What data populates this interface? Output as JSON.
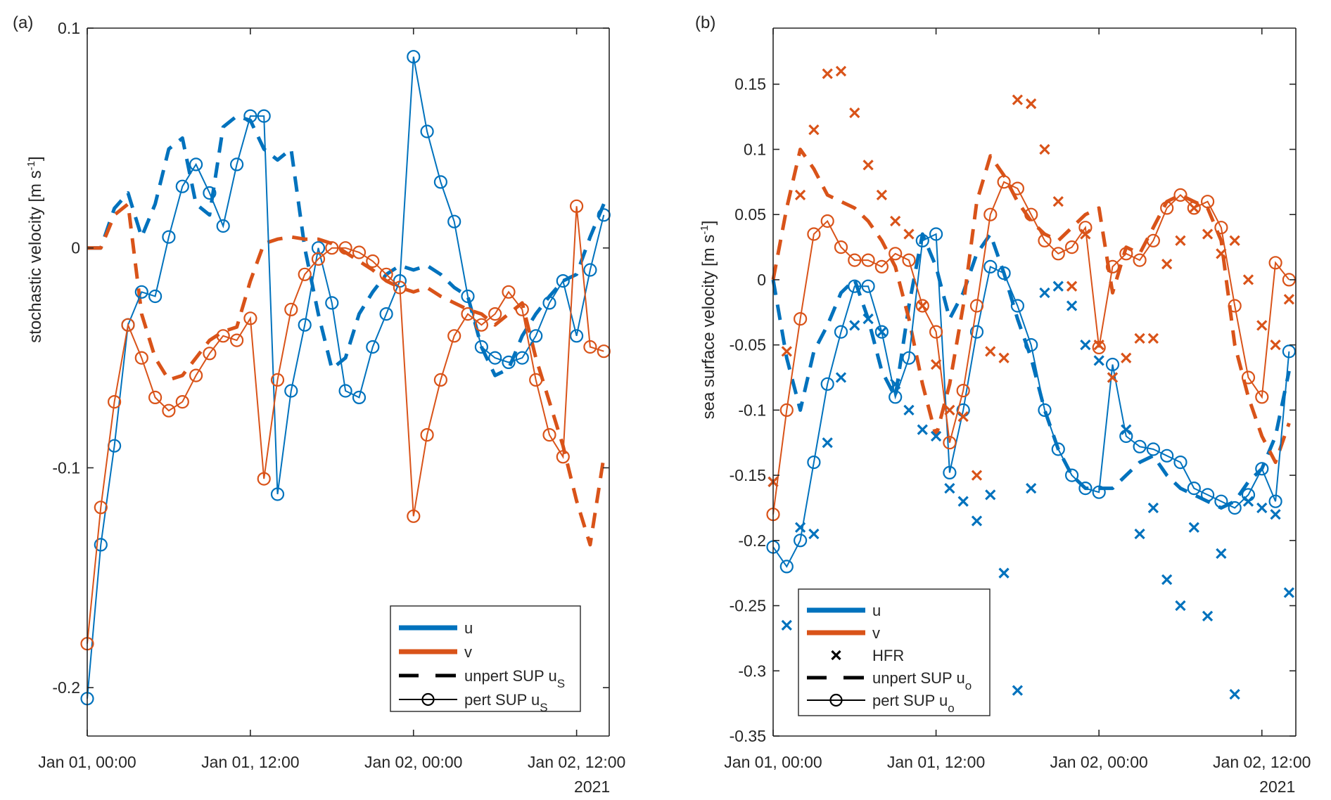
{
  "colors": {
    "u": "#0072BD",
    "v": "#D95319",
    "axis": "#262626"
  },
  "chart_data": [
    {
      "panel_label": "(a)",
      "type": "line",
      "ylabel": "stochastic velocity [m s",
      "ylabel_sup": "-1",
      "ylabel_end": "]",
      "ylim": [
        -0.222,
        0.1
      ],
      "xlim_hours": [
        0,
        38.4
      ],
      "yticks": [
        0.1,
        0,
        -0.1,
        -0.2
      ],
      "ytick_labels": [
        "0.1",
        "0",
        "-0.1",
        "-0.2"
      ],
      "xticks_hours": [
        0,
        12,
        24,
        36
      ],
      "xtick_labels": [
        "Jan 01, 00:00",
        "Jan 01, 12:00",
        "Jan 02, 00:00",
        "Jan 02, 12:00"
      ],
      "xaxis_secondary_label": "2021",
      "legend": {
        "placement": "bottom-right",
        "entries": [
          {
            "label": "u",
            "sub": "",
            "style": "u-line"
          },
          {
            "label": "v",
            "sub": "",
            "style": "v-line"
          },
          {
            "label": "unpert SUP u",
            "sub": "S",
            "style": "dashed"
          },
          {
            "label": "pert SUP u",
            "sub": "S",
            "style": "circle-line"
          }
        ]
      },
      "x_hours": [
        0,
        1,
        2,
        3,
        4,
        5,
        6,
        7,
        8,
        9,
        10,
        11,
        12,
        13,
        14,
        15,
        16,
        17,
        18,
        19,
        20,
        21,
        22,
        23,
        24,
        25,
        26,
        27,
        28,
        29,
        30,
        31,
        32,
        33,
        34,
        35,
        36,
        37,
        38
      ],
      "series": [
        {
          "name": "u unpert SUP",
          "color_key": "u",
          "style": "dashed",
          "values": [
            0.0,
            0.0,
            0.018,
            0.025,
            0.005,
            0.02,
            0.045,
            0.05,
            0.02,
            0.015,
            0.055,
            0.06,
            0.058,
            0.045,
            0.04,
            0.045,
            0.0,
            -0.03,
            -0.055,
            -0.05,
            -0.03,
            -0.02,
            -0.012,
            -0.008,
            -0.01,
            -0.008,
            -0.012,
            -0.018,
            -0.022,
            -0.045,
            -0.058,
            -0.055,
            -0.04,
            -0.03,
            -0.022,
            -0.015,
            -0.012,
            0.005,
            0.02
          ]
        },
        {
          "name": "v unpert SUP",
          "color_key": "v",
          "style": "dashed",
          "values": [
            0.0,
            0.0,
            0.015,
            0.02,
            -0.03,
            -0.05,
            -0.06,
            -0.058,
            -0.05,
            -0.042,
            -0.038,
            -0.036,
            -0.015,
            0.002,
            0.004,
            0.005,
            0.004,
            0.004,
            0.002,
            -0.002,
            -0.006,
            -0.01,
            -0.015,
            -0.018,
            -0.02,
            -0.018,
            -0.022,
            -0.025,
            -0.028,
            -0.03,
            -0.035,
            -0.03,
            -0.025,
            -0.05,
            -0.07,
            -0.09,
            -0.115,
            -0.135,
            -0.095
          ]
        },
        {
          "name": "u pert SUP",
          "color_key": "u",
          "style": "circle-line",
          "values": [
            -0.205,
            -0.135,
            -0.09,
            -0.035,
            -0.02,
            -0.022,
            0.005,
            0.028,
            0.038,
            0.025,
            0.01,
            0.038,
            0.06,
            0.06,
            -0.112,
            -0.065,
            -0.035,
            0.0,
            -0.025,
            -0.065,
            -0.068,
            -0.045,
            -0.03,
            -0.015,
            0.087,
            0.053,
            0.03,
            0.012,
            -0.022,
            -0.045,
            -0.05,
            -0.052,
            -0.05,
            -0.04,
            -0.025,
            -0.015,
            -0.04,
            -0.01,
            0.015
          ]
        },
        {
          "name": "v pert SUP",
          "color_key": "v",
          "style": "circle-line",
          "values": [
            -0.18,
            -0.118,
            -0.07,
            -0.035,
            -0.05,
            -0.068,
            -0.074,
            -0.07,
            -0.058,
            -0.048,
            -0.04,
            -0.042,
            -0.032,
            -0.105,
            -0.06,
            -0.028,
            -0.012,
            -0.005,
            0.0,
            0.0,
            -0.002,
            -0.006,
            -0.012,
            -0.018,
            -0.122,
            -0.085,
            -0.06,
            -0.04,
            -0.03,
            -0.035,
            -0.03,
            -0.02,
            -0.028,
            -0.06,
            -0.085,
            -0.095,
            0.019,
            -0.045,
            -0.047
          ]
        }
      ]
    },
    {
      "panel_label": "(b)",
      "type": "line",
      "ylabel": "sea surface velocity [m s",
      "ylabel_sup": "-1",
      "ylabel_end": "]",
      "ylim": [
        -0.35,
        0.193
      ],
      "xlim_hours": [
        0,
        38.5
      ],
      "yticks": [
        0.15,
        0.1,
        0.05,
        0,
        -0.05,
        -0.1,
        -0.15,
        -0.2,
        -0.25,
        -0.3,
        -0.35
      ],
      "ytick_labels": [
        "0.15",
        "0.1",
        "0.05",
        "0",
        "-0.05",
        "-0.1",
        "-0.15",
        "-0.2",
        "-0.25",
        "-0.3",
        "-0.35"
      ],
      "xticks_hours": [
        0,
        12,
        24,
        36
      ],
      "xtick_labels": [
        "Jan 01, 00:00",
        "Jan 01, 12:00",
        "Jan 02, 00:00",
        "Jan 02, 12:00"
      ],
      "xaxis_secondary_label": "2021",
      "legend": {
        "placement": "bottom-left",
        "entries": [
          {
            "label": "u",
            "sub": "",
            "style": "u-line"
          },
          {
            "label": "v",
            "sub": "",
            "style": "v-line"
          },
          {
            "label": "HFR",
            "sub": "",
            "style": "cross"
          },
          {
            "label": "unpert SUP u",
            "sub": "o",
            "style": "dashed"
          },
          {
            "label": "pert SUP u",
            "sub": "o",
            "style": "circle-line"
          }
        ]
      },
      "x_hours": [
        0,
        1,
        2,
        3,
        4,
        5,
        6,
        7,
        8,
        9,
        10,
        11,
        12,
        13,
        14,
        15,
        16,
        17,
        18,
        19,
        20,
        21,
        22,
        23,
        24,
        25,
        26,
        27,
        28,
        29,
        30,
        31,
        32,
        33,
        34,
        35,
        36,
        37,
        38
      ],
      "series": [
        {
          "name": "u unpert SUP",
          "color_key": "u",
          "style": "dashed",
          "values": [
            0.0,
            -0.06,
            -0.1,
            -0.055,
            -0.035,
            -0.01,
            0.0,
            -0.03,
            -0.07,
            -0.09,
            -0.02,
            0.035,
            0.01,
            -0.03,
            -0.01,
            0.02,
            0.035,
            0.005,
            -0.03,
            -0.06,
            -0.1,
            -0.13,
            -0.15,
            -0.16,
            -0.16,
            -0.16,
            -0.15,
            -0.14,
            -0.135,
            -0.15,
            -0.16,
            -0.165,
            -0.17,
            -0.175,
            -0.17,
            -0.155,
            -0.145,
            -0.12,
            -0.07
          ]
        },
        {
          "name": "v unpert SUP",
          "color_key": "v",
          "style": "dashed",
          "values": [
            0.0,
            0.055,
            0.1,
            0.085,
            0.065,
            0.06,
            0.055,
            0.045,
            0.03,
            0.01,
            -0.03,
            -0.08,
            -0.12,
            -0.08,
            -0.02,
            0.06,
            0.095,
            0.08,
            0.06,
            0.045,
            0.035,
            0.03,
            0.04,
            0.05,
            0.055,
            -0.01,
            0.025,
            0.02,
            0.04,
            0.06,
            0.065,
            0.06,
            0.055,
            0.03,
            -0.05,
            -0.09,
            -0.12,
            -0.14,
            -0.11
          ]
        },
        {
          "name": "u pert SUP",
          "color_key": "u",
          "style": "circle-line",
          "values": [
            -0.205,
            -0.22,
            -0.2,
            -0.14,
            -0.08,
            -0.04,
            -0.005,
            -0.005,
            -0.04,
            -0.09,
            -0.06,
            0.03,
            0.035,
            -0.148,
            -0.1,
            -0.04,
            0.01,
            0.005,
            -0.02,
            -0.05,
            -0.1,
            -0.13,
            -0.15,
            -0.16,
            -0.163,
            -0.065,
            -0.12,
            -0.128,
            -0.13,
            -0.135,
            -0.14,
            -0.16,
            -0.165,
            -0.17,
            -0.175,
            -0.165,
            -0.145,
            -0.17,
            -0.055
          ]
        },
        {
          "name": "v pert SUP",
          "color_key": "v",
          "style": "circle-line",
          "values": [
            -0.18,
            -0.1,
            -0.03,
            0.035,
            0.045,
            0.025,
            0.015,
            0.015,
            0.01,
            0.02,
            0.015,
            -0.02,
            -0.04,
            -0.125,
            -0.085,
            -0.02,
            0.05,
            0.075,
            0.07,
            0.05,
            0.03,
            0.02,
            0.025,
            0.04,
            -0.052,
            0.01,
            0.02,
            0.015,
            0.03,
            0.055,
            0.065,
            0.055,
            0.06,
            0.04,
            -0.02,
            -0.075,
            -0.09,
            0.013,
            0.0
          ]
        },
        {
          "name": "u HFR",
          "color_key": "u",
          "style": "cross",
          "values": [
            -0.155,
            -0.265,
            -0.19,
            -0.195,
            -0.125,
            -0.075,
            -0.035,
            -0.03,
            -0.04,
            -0.08,
            -0.1,
            -0.115,
            -0.12,
            -0.16,
            -0.17,
            -0.185,
            -0.165,
            -0.225,
            -0.315,
            -0.16,
            -0.01,
            -0.005,
            -0.02,
            -0.05,
            -0.062,
            -0.075,
            -0.115,
            -0.195,
            -0.175,
            -0.23,
            -0.25,
            -0.19,
            -0.258,
            -0.21,
            -0.318,
            -0.17,
            -0.175,
            -0.18,
            -0.24
          ]
        },
        {
          "name": "v HFR",
          "color_key": "v",
          "style": "cross",
          "values": [
            -0.155,
            -0.055,
            0.065,
            0.115,
            0.158,
            0.16,
            0.128,
            0.088,
            0.065,
            0.045,
            0.035,
            -0.02,
            -0.065,
            -0.1,
            -0.105,
            -0.15,
            -0.055,
            -0.06,
            0.138,
            0.135,
            0.1,
            0.06,
            -0.005,
            0.035,
            -0.05,
            -0.075,
            -0.06,
            -0.045,
            -0.045,
            0.012,
            0.03,
            0.055,
            0.035,
            0.02,
            0.03,
            0.0,
            -0.035,
            -0.05,
            -0.015
          ]
        }
      ]
    }
  ]
}
